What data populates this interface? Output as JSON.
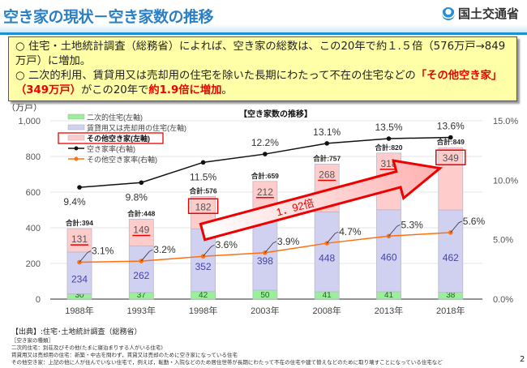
{
  "header": {
    "title": "空き家の現状－空き家数の推移",
    "ministry": "国土交通省"
  },
  "summary": {
    "line1": "○ 住宅・土地統計調査（総務省）によれば、空き家の総数は、この20年で約１.５倍（576万戸→849万戸）に増加。",
    "line2_pre": "○ 二次的利用、賃貸用又は売却用の住宅を除いた長期にわたって不在の住宅などの",
    "line2_red1": "「その他空き家」（349万戸）",
    "line2_mid": "がこの20年で",
    "line2_red2": "約1.9倍に増加",
    "line2_end": "。"
  },
  "chart_data": {
    "type": "bar",
    "title": "【空き家数の推移】",
    "ylabel": "（万戸）",
    "ylim": [
      0,
      1000
    ],
    "yticks": [
      "0",
      "200",
      "400",
      "600",
      "800",
      "1,000"
    ],
    "y2lim": [
      0,
      15
    ],
    "y2ticks": [
      "0.0%",
      "5.0%",
      "10.0%",
      "15.0%"
    ],
    "categories": [
      "1988年",
      "1993年",
      "1998年",
      "2003年",
      "2008年",
      "2013年",
      "2018年"
    ],
    "stacked": true,
    "series": [
      {
        "name": "二次的住宅(左軸)",
        "color": "#99f099",
        "values": [
          30,
          37,
          42,
          50,
          41,
          41,
          38
        ]
      },
      {
        "name": "賃貸用又は売却用の住宅(左軸)",
        "color": "#d0d0f0",
        "values": [
          234,
          262,
          352,
          398,
          448,
          460,
          462
        ]
      },
      {
        "name": "その他空き家(左軸)",
        "color": "#ffcccc",
        "values": [
          131,
          149,
          182,
          212,
          268,
          318,
          349
        ]
      }
    ],
    "lines": [
      {
        "name": "空き家率(右軸)",
        "color": "#111111",
        "values": [
          9.4,
          9.8,
          11.5,
          12.2,
          13.1,
          13.5,
          13.6
        ]
      },
      {
        "name": "その他空き家率(右軸)",
        "color": "#ff7010",
        "values": [
          3.1,
          3.2,
          3.6,
          3.9,
          4.7,
          5.3,
          5.6
        ]
      }
    ],
    "totals": [
      "合計:394",
      "合計:448",
      "合計:576",
      "合計:659",
      "合計:757",
      "合計:820",
      "合計:849"
    ],
    "annotation": "1．92倍",
    "grid": true,
    "legend": "top-left"
  },
  "footer": {
    "source": "【出典】:住宅･土地統計調査（総務省）",
    "notes": [
      "［空き家の種類］",
      "二次的住宅：別荘及びその他(たまに寝泊まりする人がいる住宅)",
      "賃貸用又は売却用の住宅：新築・中古を問わず，賃貸又は売却のために空き家になっている住宅",
      "その他空き家：上記の他に人が住んでいない住宅で，例えば，転勤・入院などのため居住世帯が長期にわたって不在の住宅や建て替えなどのために取り壊すことになっている住宅など"
    ],
    "page": "2"
  }
}
